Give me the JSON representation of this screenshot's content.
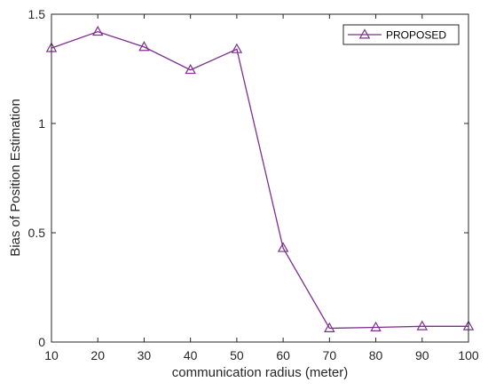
{
  "chart_data": {
    "type": "line",
    "title": "",
    "xlabel": "communication radius (meter)",
    "ylabel": "Bias of Position Estimation",
    "xlim": [
      10,
      100
    ],
    "ylim": [
      0,
      1.5
    ],
    "xticks": [
      10,
      20,
      30,
      40,
      50,
      60,
      70,
      80,
      90,
      100
    ],
    "yticks": [
      0,
      0.5,
      1,
      1.5
    ],
    "x": [
      10,
      20,
      30,
      40,
      50,
      60,
      70,
      80,
      90,
      100
    ],
    "series": [
      {
        "name": "PROPOSED",
        "values": [
          1.345,
          1.42,
          1.35,
          1.245,
          1.34,
          0.43,
          0.063,
          0.067,
          0.072,
          0.072
        ],
        "color": "#7e2f8e",
        "marker": "triangle-hollow"
      }
    ],
    "grid": false,
    "legend_position": "top-right"
  }
}
